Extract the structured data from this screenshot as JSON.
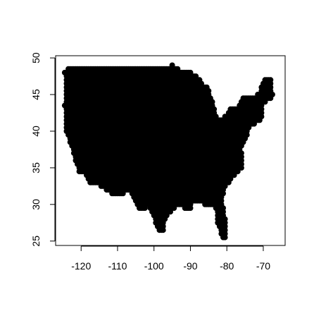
{
  "chart_data": {
    "type": "scatter",
    "title": "",
    "xlabel": "",
    "ylabel": "",
    "xlim": [
      -127,
      -64
    ],
    "ylim": [
      24.4,
      50.3
    ],
    "x_ticks": [
      -120,
      -110,
      -100,
      -90,
      -80,
      -70
    ],
    "x_tick_labels": [
      "-120",
      "-110",
      "-100",
      "-90",
      "-80",
      "-70"
    ],
    "y_ticks": [
      25,
      30,
      35,
      40,
      45,
      50
    ],
    "y_tick_labels": [
      "25",
      "30",
      "35",
      "40",
      "45",
      "50"
    ],
    "grid": false,
    "legend": "none",
    "marker": "filled-circle",
    "point_color": "#000000",
    "point_grid_step_degrees": 0.5,
    "point_count_note": "dense lattice of points covering the contiguous United States",
    "outline_lon_lat": [
      [
        -124.5,
        48.4
      ],
      [
        -123.0,
        48.6
      ],
      [
        -122.7,
        49.0
      ],
      [
        -95.2,
        49.0
      ],
      [
        -95.0,
        49.3
      ],
      [
        -94.5,
        48.7
      ],
      [
        -89.5,
        48.0
      ],
      [
        -88.0,
        47.3
      ],
      [
        -86.5,
        46.5
      ],
      [
        -85.0,
        46.0
      ],
      [
        -84.6,
        45.0
      ],
      [
        -83.3,
        43.0
      ],
      [
        -82.9,
        41.8
      ],
      [
        -81.5,
        41.5
      ],
      [
        -79.8,
        42.4
      ],
      [
        -79.0,
        43.3
      ],
      [
        -76.5,
        43.5
      ],
      [
        -76.0,
        44.2
      ],
      [
        -74.8,
        45.0
      ],
      [
        -71.5,
        45.0
      ],
      [
        -70.8,
        45.6
      ],
      [
        -70.0,
        46.7
      ],
      [
        -69.3,
        47.4
      ],
      [
        -68.0,
        47.3
      ],
      [
        -67.8,
        45.7
      ],
      [
        -66.9,
        44.9
      ],
      [
        -68.5,
        44.2
      ],
      [
        -70.2,
        43.6
      ],
      [
        -70.6,
        42.7
      ],
      [
        -70.0,
        41.8
      ],
      [
        -71.5,
        41.3
      ],
      [
        -73.8,
        40.6
      ],
      [
        -74.2,
        39.6
      ],
      [
        -75.0,
        38.8
      ],
      [
        -76.0,
        37.5
      ],
      [
        -75.8,
        36.5
      ],
      [
        -75.6,
        35.3
      ],
      [
        -76.5,
        34.6
      ],
      [
        -78.0,
        33.9
      ],
      [
        -79.2,
        33.2
      ],
      [
        -80.8,
        32.0
      ],
      [
        -81.3,
        30.5
      ],
      [
        -80.6,
        28.5
      ],
      [
        -80.0,
        26.8
      ],
      [
        -80.2,
        25.4
      ],
      [
        -81.0,
        25.2
      ],
      [
        -81.8,
        26.3
      ],
      [
        -82.6,
        27.5
      ],
      [
        -82.8,
        28.8
      ],
      [
        -83.5,
        29.8
      ],
      [
        -84.3,
        30.0
      ],
      [
        -85.5,
        29.8
      ],
      [
        -87.3,
        30.3
      ],
      [
        -88.5,
        30.3
      ],
      [
        -89.6,
        30.2
      ],
      [
        -89.6,
        29.3
      ],
      [
        -90.8,
        29.3
      ],
      [
        -93.2,
        29.8
      ],
      [
        -94.8,
        29.3
      ],
      [
        -96.5,
        28.2
      ],
      [
        -97.3,
        27.2
      ],
      [
        -97.3,
        26.0
      ],
      [
        -98.5,
        26.2
      ],
      [
        -99.5,
        27.4
      ],
      [
        -100.3,
        28.5
      ],
      [
        -101.5,
        29.8
      ],
      [
        -102.8,
        29.3
      ],
      [
        -103.8,
        29.2
      ],
      [
        -104.6,
        29.8
      ],
      [
        -105.5,
        31.0
      ],
      [
        -106.6,
        31.8
      ],
      [
        -108.2,
        31.8
      ],
      [
        -108.2,
        31.3
      ],
      [
        -111.1,
        31.3
      ],
      [
        -114.8,
        32.5
      ],
      [
        -117.1,
        32.6
      ],
      [
        -118.5,
        34.0
      ],
      [
        -120.6,
        34.5
      ],
      [
        -121.9,
        36.5
      ],
      [
        -122.5,
        37.8
      ],
      [
        -123.8,
        39.5
      ],
      [
        -124.3,
        40.5
      ],
      [
        -124.2,
        42.0
      ],
      [
        -124.5,
        43.5
      ],
      [
        -124.0,
        46.0
      ],
      [
        -124.7,
        48.3
      ]
    ]
  }
}
